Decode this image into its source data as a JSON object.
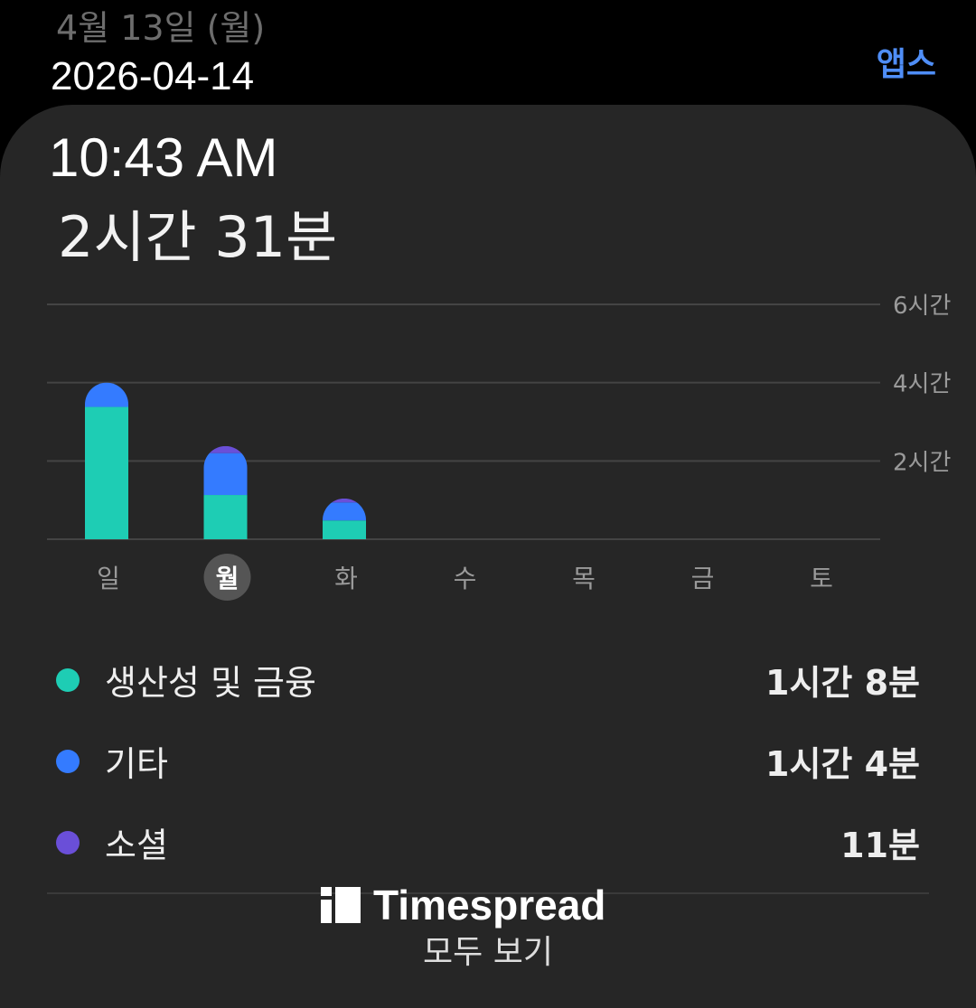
{
  "header": {
    "date": "4월 13일 (월)",
    "apps_link": "앱스"
  },
  "overlay": {
    "date": "2026-04-14",
    "time": "10:43 AM"
  },
  "summary": {
    "total": "2시간 31분"
  },
  "chart_data": {
    "type": "bar",
    "stacked": true,
    "categories": [
      "일",
      "월",
      "화",
      "수",
      "목",
      "금",
      "토"
    ],
    "selected": "월",
    "y_ticks": [
      "2시간",
      "4시간",
      "6시간"
    ],
    "ylim": [
      0,
      6
    ],
    "y_unit": "hours",
    "grid": true,
    "series": [
      {
        "name": "생산성 및 금융",
        "color": "#1ecdb4",
        "values": [
          3.38,
          1.13,
          0.48,
          0,
          0,
          0,
          0
        ]
      },
      {
        "name": "기타",
        "color": "#347bff",
        "values": [
          0.62,
          1.07,
          0.46,
          0,
          0,
          0,
          0
        ]
      },
      {
        "name": "소셜",
        "color": "#6a4fd8",
        "values": [
          0,
          0.18,
          0.1,
          0,
          0,
          0,
          0
        ]
      }
    ]
  },
  "legend": [
    {
      "label": "생산성 및 금융",
      "value": "1시간 8분",
      "color": "#1ecdb4"
    },
    {
      "label": "기타",
      "value": "1시간 4분",
      "color": "#347bff"
    },
    {
      "label": "소셜",
      "value": "11분",
      "color": "#6a4fd8"
    }
  ],
  "watermark": "Timespread",
  "see_all": "모두 보기"
}
